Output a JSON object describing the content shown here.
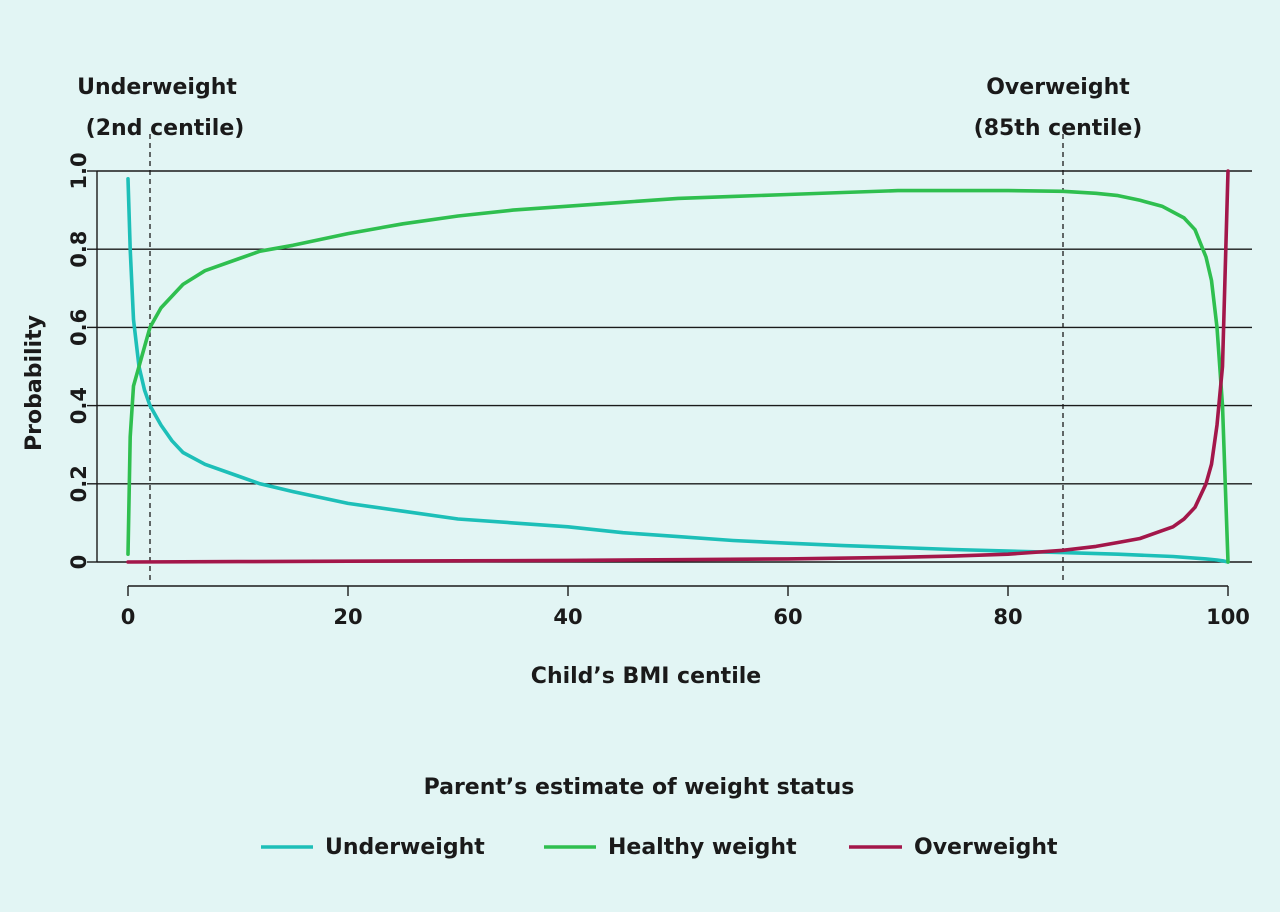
{
  "chart_data": {
    "type": "line",
    "xlabel": "Child’s BMI centile",
    "ylabel": "Probability",
    "xlim": [
      0,
      100
    ],
    "ylim": [
      0,
      1
    ],
    "x_ticks": [
      "0",
      "20",
      "40",
      "60",
      "80",
      "100"
    ],
    "y_ticks": [
      "0",
      "0.2",
      "0.4",
      "0.6",
      "0.8",
      "1.0"
    ],
    "x_tick_values": [
      0,
      20,
      40,
      60,
      80,
      100
    ],
    "y_tick_values": [
      0,
      0.2,
      0.4,
      0.6,
      0.8,
      1.0
    ],
    "grid": "horizontal",
    "legend_title": "Parent’s estimate of weight status",
    "legend_position": "bottom",
    "reference_lines": [
      {
        "x": 2,
        "label_line1": "Underweight",
        "label_line2": "(2nd centile)"
      },
      {
        "x": 85,
        "label_line1": "Overweight",
        "label_line2": "(85th centile)"
      }
    ],
    "series": [
      {
        "name": "Underweight",
        "color": "#1dbfb8",
        "x": [
          0,
          0.2,
          0.5,
          1,
          1.5,
          2,
          3,
          4,
          5,
          7,
          10,
          12,
          15,
          20,
          25,
          30,
          35,
          40,
          45,
          50,
          55,
          60,
          65,
          70,
          75,
          80,
          85,
          90,
          95,
          98,
          99,
          99.5,
          100
        ],
        "y": [
          0.98,
          0.8,
          0.62,
          0.5,
          0.44,
          0.4,
          0.35,
          0.31,
          0.28,
          0.25,
          0.22,
          0.2,
          0.18,
          0.15,
          0.13,
          0.11,
          0.1,
          0.09,
          0.075,
          0.065,
          0.055,
          0.048,
          0.042,
          0.037,
          0.032,
          0.028,
          0.024,
          0.02,
          0.014,
          0.008,
          0.005,
          0.003,
          0.0
        ]
      },
      {
        "name": "Healthy weight",
        "color": "#2fbf4f",
        "x": [
          0,
          0.2,
          0.5,
          1,
          1.5,
          2,
          3,
          4,
          5,
          7,
          10,
          12,
          15,
          20,
          25,
          30,
          35,
          40,
          45,
          50,
          55,
          60,
          65,
          70,
          75,
          80,
          85,
          88,
          90,
          92,
          94,
          96,
          97,
          98,
          98.5,
          99,
          99.5,
          100
        ],
        "y": [
          0.02,
          0.32,
          0.45,
          0.5,
          0.55,
          0.6,
          0.65,
          0.68,
          0.71,
          0.745,
          0.775,
          0.795,
          0.81,
          0.84,
          0.865,
          0.885,
          0.9,
          0.91,
          0.92,
          0.93,
          0.935,
          0.94,
          0.945,
          0.95,
          0.95,
          0.95,
          0.948,
          0.943,
          0.937,
          0.925,
          0.91,
          0.88,
          0.85,
          0.78,
          0.72,
          0.6,
          0.4,
          0.0
        ]
      },
      {
        "name": "Overweight",
        "color": "#a3174a",
        "x": [
          0,
          10,
          20,
          30,
          40,
          50,
          60,
          70,
          75,
          80,
          85,
          88,
          90,
          92,
          94,
          95,
          96,
          97,
          98,
          98.5,
          99,
          99.5,
          100
        ],
        "y": [
          0.0,
          0.001,
          0.002,
          0.003,
          0.004,
          0.006,
          0.008,
          0.012,
          0.015,
          0.02,
          0.03,
          0.04,
          0.05,
          0.06,
          0.08,
          0.09,
          0.11,
          0.14,
          0.2,
          0.25,
          0.35,
          0.5,
          1.0
        ]
      }
    ]
  }
}
